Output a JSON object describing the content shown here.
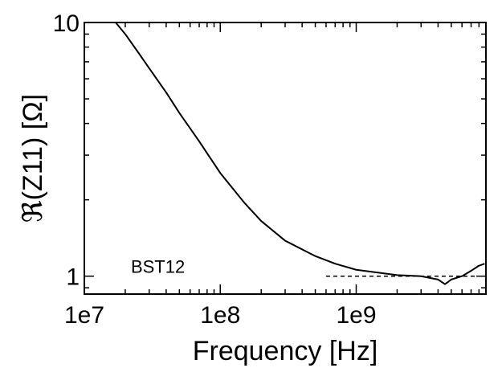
{
  "chart_data": {
    "type": "line",
    "xlabel": "Frequency [Hz]",
    "ylabel": "ℜ(Z11) [Ω]",
    "xscale": "log",
    "yscale": "log",
    "xlim": [
      10000000,
      9000000000
    ],
    "ylim": [
      0.85,
      10
    ],
    "x_ticks": [
      {
        "value": 10000000,
        "label": "1e7"
      },
      {
        "value": 100000000,
        "label": "1e8"
      },
      {
        "value": 1000000000,
        "label": "1e9"
      }
    ],
    "y_ticks": [
      {
        "value": 1,
        "label": "1"
      },
      {
        "value": 10,
        "label": "10"
      }
    ],
    "grid": false,
    "annotations": [
      {
        "text": "BST12",
        "x": 22000000,
        "y": 1.0
      }
    ],
    "series": [
      {
        "style": "solid",
        "color": "#000000",
        "x": [
          17000000,
          20000000,
          25000000,
          30000000,
          40000000,
          50000000,
          70000000,
          100000000,
          150000000,
          200000000,
          300000000,
          500000000,
          700000000,
          1000000000,
          1500000000,
          2000000000,
          3000000000,
          4000000000,
          4500000000,
          5000000000,
          6000000000,
          7000000000,
          8000000000,
          8800000000
        ],
        "y": [
          10.0,
          9.0,
          7.6,
          6.6,
          5.3,
          4.4,
          3.4,
          2.55,
          1.95,
          1.65,
          1.38,
          1.2,
          1.12,
          1.06,
          1.03,
          1.01,
          1.0,
          0.97,
          0.93,
          0.97,
          1.0,
          1.05,
          1.1,
          1.12
        ]
      },
      {
        "style": "dashed",
        "color": "#000000",
        "x": [
          600000000,
          9000000000
        ],
        "y": [
          1.0,
          1.0
        ]
      }
    ]
  }
}
